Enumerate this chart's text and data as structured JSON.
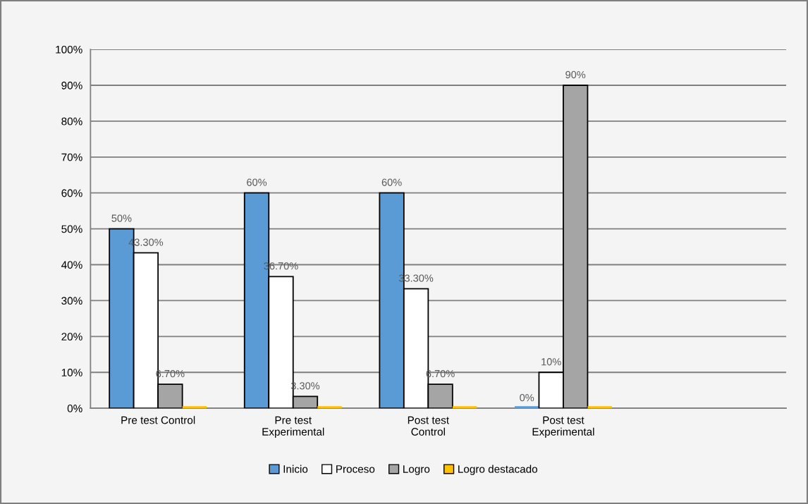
{
  "chart_data": {
    "type": "bar",
    "categories": [
      "Pre test Control",
      "Pre test Experimental",
      "Post test Control",
      "Post test Experimental"
    ],
    "series": [
      {
        "name": "Inicio",
        "color": "#5b9bd5",
        "values": [
          50,
          60,
          60,
          0
        ],
        "value_labels": [
          "50%",
          "60%",
          "60%",
          "0%"
        ]
      },
      {
        "name": "Proceso",
        "color": "#ffffff",
        "values": [
          43.3,
          36.7,
          33.3,
          10
        ],
        "value_labels": [
          "43.30%",
          "36.70%",
          "33.30%",
          "10%"
        ]
      },
      {
        "name": "Logro",
        "color": "#a5a5a5",
        "values": [
          6.7,
          3.3,
          6.7,
          90
        ],
        "value_labels": [
          "6.70%",
          "3.30%",
          "6.70%",
          "90%"
        ]
      },
      {
        "name": "Logro destacado",
        "color": "#ffc000",
        "values": [
          0,
          0,
          0,
          0
        ]
      }
    ],
    "ylim": [
      0,
      100
    ],
    "yticks": [
      {
        "value": 0,
        "label": "0%"
      },
      {
        "value": 10,
        "label": "10%"
      },
      {
        "value": 20,
        "label": "20%"
      },
      {
        "value": 30,
        "label": "30%"
      },
      {
        "value": 40,
        "label": "40%"
      },
      {
        "value": 50,
        "label": "50%"
      },
      {
        "value": 60,
        "label": "60%"
      },
      {
        "value": 70,
        "label": "70%"
      },
      {
        "value": 80,
        "label": "80%"
      },
      {
        "value": 90,
        "label": "90%"
      },
      {
        "value": 100,
        "label": "100%"
      }
    ],
    "grid": "y",
    "legend": "bottom"
  }
}
